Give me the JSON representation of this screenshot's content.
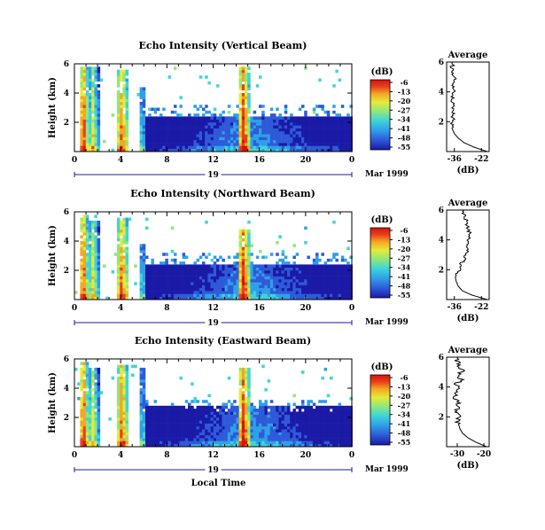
{
  "colors": {
    "colormap": [
      "#1a1aa6",
      "#2e5ad9",
      "#2fa0e8",
      "#3fd6d6",
      "#8fe87a",
      "#e6ea3a",
      "#f5a623",
      "#e8401c",
      "#d4140e"
    ],
    "background": "#ffffff",
    "profile_line": "#000000"
  },
  "colorbar": {
    "label": "(dB)",
    "ticks": [
      "-6",
      "-13",
      "-20",
      "-27",
      "-34",
      "-41",
      "-48",
      "-55"
    ]
  },
  "shared": {
    "date_day": "19",
    "date_label": "Mar 1999",
    "xlabel": "Local Time",
    "ylabel": "Height (km)",
    "profile_title": "Average",
    "profile_xlabel": "(dB)"
  },
  "chart_data": [
    {
      "type": "heatmap",
      "title": "Echo Intensity (Vertical Beam)",
      "xlabel": "Local Time",
      "ylabel": "Height (km)",
      "x_ticks": [
        "0",
        "4",
        "8",
        "12",
        "16",
        "20",
        "0"
      ],
      "y_ticks": [
        "2",
        "4",
        "6"
      ],
      "xlim": [
        0,
        24
      ],
      "ylim": [
        0,
        6
      ],
      "colorbar_ticks": [
        "-6",
        "-13",
        "-20",
        "-27",
        "-34",
        "-41",
        "-48",
        "-55"
      ],
      "features": [
        {
          "x": [
            0.3,
            1.0
          ],
          "top_km": 6.0,
          "peak_db": -6
        },
        {
          "x": [
            1.0,
            2.0
          ],
          "top_km": 6.0,
          "peak_db": -20
        },
        {
          "x": [
            3.5,
            4.5
          ],
          "top_km": 5.8,
          "peak_db": -10
        },
        {
          "x": [
            5.5,
            6.0
          ],
          "top_km": 4.5,
          "peak_db": -27
        },
        {
          "x": [
            14.0,
            15.0
          ],
          "top_km": 6.0,
          "peak_db": -6
        },
        {
          "x": [
            6.0,
            24.0
          ],
          "top_km": 2.5,
          "peak_db": -41
        }
      ],
      "profile": {
        "title": "Average",
        "xlabel": "(dB)",
        "x_ticks": [
          "-36",
          "-22"
        ],
        "y_ticks": [
          "2",
          "4",
          "6"
        ],
        "xlim": [
          -40,
          -18
        ],
        "ylim": [
          0,
          6
        ],
        "height_km": [
          0.0,
          0.3,
          0.6,
          0.9,
          1.2,
          1.5,
          1.8,
          2.1,
          2.4,
          2.7,
          3.0,
          3.3,
          3.6,
          3.9,
          4.2,
          4.5,
          4.8,
          5.1,
          5.4,
          5.7,
          6.0
        ],
        "db": [
          -19,
          -26,
          -31,
          -34,
          -36,
          -37,
          -37.5,
          -37,
          -36.5,
          -37,
          -37.2,
          -36.8,
          -36.5,
          -37,
          -36,
          -37.5,
          -35.5,
          -37,
          -36.5,
          -37.2,
          -37
        ]
      }
    },
    {
      "type": "heatmap",
      "title": "Echo Intensity (Northward Beam)",
      "xlabel": "Local Time",
      "ylabel": "Height (km)",
      "x_ticks": [
        "0",
        "4",
        "8",
        "12",
        "16",
        "20",
        "0"
      ],
      "y_ticks": [
        "2",
        "4",
        "6"
      ],
      "xlim": [
        0,
        24
      ],
      "ylim": [
        0,
        6
      ],
      "colorbar_ticks": [
        "-6",
        "-13",
        "-20",
        "-27",
        "-34",
        "-41",
        "-48",
        "-55"
      ],
      "features": [
        {
          "x": [
            0.3,
            1.0
          ],
          "top_km": 6.0,
          "peak_db": -6
        },
        {
          "x": [
            1.0,
            2.0
          ],
          "top_km": 5.5,
          "peak_db": -20
        },
        {
          "x": [
            3.5,
            4.5
          ],
          "top_km": 5.8,
          "peak_db": -10
        },
        {
          "x": [
            5.5,
            6.0
          ],
          "top_km": 4.0,
          "peak_db": -27
        },
        {
          "x": [
            14.0,
            15.0
          ],
          "top_km": 5.0,
          "peak_db": -6
        },
        {
          "x": [
            6.0,
            24.0
          ],
          "top_km": 2.5,
          "peak_db": -41
        }
      ],
      "profile": {
        "title": "Average",
        "xlabel": "(dB)",
        "x_ticks": [
          "-36",
          "-22"
        ],
        "y_ticks": [
          "2",
          "4",
          "6"
        ],
        "xlim": [
          -40,
          -18
        ],
        "ylim": [
          0,
          6
        ],
        "height_km": [
          0.0,
          0.3,
          0.6,
          0.9,
          1.2,
          1.5,
          1.8,
          2.1,
          2.4,
          2.7,
          3.0,
          3.3,
          3.6,
          3.9,
          4.2,
          4.5,
          4.8,
          5.1,
          5.4,
          5.7,
          6.0
        ],
        "db": [
          -19,
          -27,
          -32,
          -34,
          -35,
          -35.5,
          -34,
          -33,
          -32.5,
          -31,
          -30,
          -29.5,
          -30,
          -28.5,
          -29,
          -28,
          -29,
          -29.5,
          -30,
          -31,
          -31
        ]
      }
    },
    {
      "type": "heatmap",
      "title": "Echo Intensity (Eastward Beam)",
      "xlabel": "Local Time",
      "ylabel": "Height (km)",
      "x_ticks": [
        "0",
        "4",
        "8",
        "12",
        "16",
        "20",
        "0"
      ],
      "y_ticks": [
        "2",
        "4",
        "6"
      ],
      "xlim": [
        0,
        24
      ],
      "ylim": [
        0,
        6
      ],
      "colorbar_ticks": [
        "-6",
        "-13",
        "-20",
        "-27",
        "-34",
        "-41",
        "-48",
        "-55"
      ],
      "features": [
        {
          "x": [
            0.3,
            1.0
          ],
          "top_km": 6.0,
          "peak_db": -6
        },
        {
          "x": [
            1.0,
            2.0
          ],
          "top_km": 5.5,
          "peak_db": -20
        },
        {
          "x": [
            3.5,
            4.5
          ],
          "top_km": 5.8,
          "peak_db": -10
        },
        {
          "x": [
            5.5,
            6.0
          ],
          "top_km": 5.5,
          "peak_db": -27
        },
        {
          "x": [
            14.0,
            15.0
          ],
          "top_km": 5.5,
          "peak_db": -6
        },
        {
          "x": [
            6.0,
            24.0
          ],
          "top_km": 3.0,
          "peak_db": -41
        }
      ],
      "profile": {
        "title": "Average",
        "xlabel": "(dB)",
        "x_ticks": [
          "-30",
          "-20"
        ],
        "y_ticks": [
          "2",
          "4",
          "6"
        ],
        "xlim": [
          -34,
          -18
        ],
        "ylim": [
          0,
          6
        ],
        "height_km": [
          0.0,
          0.3,
          0.6,
          0.9,
          1.2,
          1.5,
          1.8,
          2.1,
          2.4,
          2.7,
          3.0,
          3.3,
          3.6,
          3.9,
          4.2,
          4.5,
          4.8,
          5.1,
          5.4,
          5.7,
          6.0
        ],
        "db": [
          -19,
          -23,
          -26,
          -28,
          -29,
          -29.5,
          -30,
          -29,
          -30.5,
          -29.5,
          -30,
          -31,
          -30,
          -29,
          -30.5,
          -28.5,
          -30,
          -28,
          -29.5,
          -30,
          -30
        ]
      }
    }
  ]
}
